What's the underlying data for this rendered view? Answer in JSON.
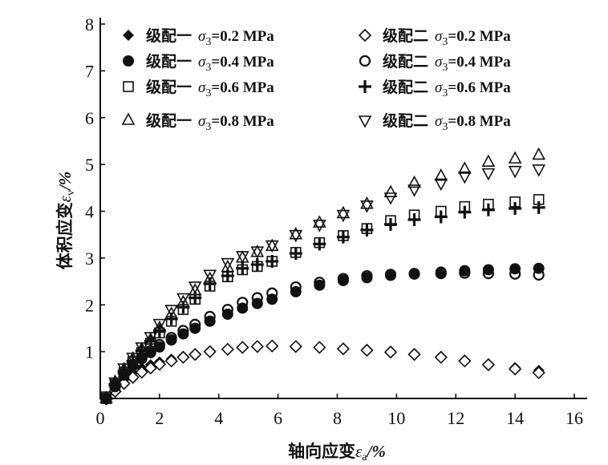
{
  "chart_data": {
    "type": "scatter",
    "xlabel": "轴向应变εa/%",
    "ylabel": "体积应变εv/%",
    "xlabel_parts": {
      "main": "轴向应变",
      "sym": "ε",
      "sub": "a",
      "unit": "/%"
    },
    "ylabel_parts": {
      "main": "体积应变",
      "sym": "ε",
      "sub": "v",
      "unit": "/%"
    },
    "xlim": [
      0,
      16
    ],
    "ylim": [
      0,
      8
    ],
    "xticks": [
      "0",
      "2",
      "4",
      "6",
      "8",
      "10",
      "12",
      "14",
      "16"
    ],
    "yticks": [
      "1",
      "2",
      "3",
      "4",
      "5",
      "6",
      "7",
      "8"
    ],
    "grid": false,
    "legend_position": "top",
    "x": [
      0.2,
      0.5,
      0.8,
      1.1,
      1.4,
      1.7,
      2.0,
      2.4,
      2.8,
      3.2,
      3.7,
      4.3,
      4.8,
      5.3,
      5.8,
      6.6,
      7.4,
      8.2,
      9.0,
      9.8,
      10.6,
      11.5,
      12.3,
      13.1,
      14.0,
      14.8
    ],
    "series": [
      {
        "name": "级配一 σ3=0.2 MPa",
        "gradation": "级配一",
        "sigma": "=0.2 MPa",
        "marker": "diamond-filled",
        "values": [
          0,
          0.2,
          0.4,
          0.55,
          0.65,
          0.72,
          0.78,
          0.84,
          0.9,
          0.95,
          1.02,
          1.06,
          1.1,
          1.12,
          1.13,
          1.12,
          1.1,
          1.07,
          1.05,
          1.01,
          0.96,
          0.9,
          0.82,
          0.74,
          0.66,
          0.6
        ]
      },
      {
        "name": "级配二 σ3=0.2 MPa",
        "gradation": "级配二",
        "sigma": "=0.2 MPa",
        "marker": "diamond-open",
        "values": [
          0,
          0.15,
          0.32,
          0.45,
          0.56,
          0.65,
          0.73,
          0.8,
          0.88,
          0.94,
          1.0,
          1.05,
          1.09,
          1.11,
          1.12,
          1.11,
          1.09,
          1.06,
          1.03,
          0.99,
          0.94,
          0.88,
          0.8,
          0.72,
          0.63,
          0.55
        ]
      },
      {
        "name": "级配一 σ3=0.4 MPa",
        "gradation": "级配一",
        "sigma": "=0.4 MPa",
        "marker": "circle-filled",
        "values": [
          0,
          0.25,
          0.5,
          0.7,
          0.85,
          0.98,
          1.1,
          1.25,
          1.38,
          1.5,
          1.65,
          1.8,
          1.93,
          2.03,
          2.12,
          2.28,
          2.42,
          2.52,
          2.58,
          2.63,
          2.67,
          2.7,
          2.73,
          2.75,
          2.77,
          2.78
        ]
      },
      {
        "name": "级配二 σ3=0.4 MPa",
        "gradation": "级配二",
        "sigma": "=0.4 MPa",
        "marker": "circle-open",
        "values": [
          0,
          0.27,
          0.52,
          0.72,
          0.88,
          1.02,
          1.15,
          1.3,
          1.45,
          1.58,
          1.75,
          1.9,
          2.05,
          2.15,
          2.25,
          2.38,
          2.48,
          2.56,
          2.62,
          2.65,
          2.66,
          2.67,
          2.68,
          2.67,
          2.66,
          2.64
        ]
      },
      {
        "name": "级配一 σ3=0.6 MPa",
        "gradation": "级配一",
        "sigma": "=0.6 MPa",
        "marker": "square-open",
        "values": [
          0,
          0.3,
          0.55,
          0.78,
          0.98,
          1.18,
          1.4,
          1.65,
          1.9,
          2.12,
          2.4,
          2.6,
          2.75,
          2.82,
          2.93,
          3.12,
          3.33,
          3.48,
          3.63,
          3.8,
          3.92,
          4.0,
          4.1,
          4.15,
          4.2,
          4.25
        ]
      },
      {
        "name": "级配二 σ3=0.6 MPa",
        "gradation": "级配二",
        "sigma": "=0.6 MPa",
        "marker": "plus",
        "values": [
          0,
          0.3,
          0.58,
          0.8,
          1.02,
          1.22,
          1.45,
          1.7,
          1.95,
          2.15,
          2.45,
          2.62,
          2.78,
          2.86,
          2.93,
          3.1,
          3.3,
          3.45,
          3.6,
          3.72,
          3.82,
          3.88,
          3.98,
          4.03,
          4.06,
          4.08
        ]
      },
      {
        "name": "级配一 σ3=0.8 MPa",
        "gradation": "级配一",
        "sigma": "=0.8 MPa",
        "marker": "triangle-up-open",
        "values": [
          0,
          0.35,
          0.62,
          0.85,
          1.05,
          1.25,
          1.5,
          1.8,
          2.05,
          2.3,
          2.55,
          2.8,
          3.0,
          3.12,
          3.25,
          3.5,
          3.75,
          3.95,
          4.15,
          4.4,
          4.6,
          4.75,
          4.9,
          5.05,
          5.12,
          5.2
        ]
      },
      {
        "name": "级配二 σ3=0.8 MPa",
        "gradation": "级配二",
        "sigma": "=0.8 MPa",
        "marker": "triangle-down-open",
        "values": [
          0.05,
          0.35,
          0.65,
          0.88,
          1.1,
          1.32,
          1.6,
          1.9,
          2.15,
          2.4,
          2.65,
          2.9,
          3.05,
          3.15,
          3.28,
          3.5,
          3.72,
          3.93,
          4.13,
          4.3,
          4.47,
          4.6,
          4.75,
          4.82,
          4.87,
          4.9
        ]
      }
    ]
  }
}
